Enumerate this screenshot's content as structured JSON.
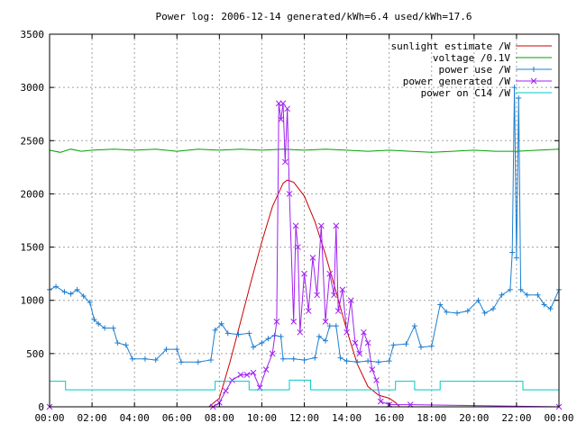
{
  "chart_data": {
    "type": "line",
    "title": "Power log: 2006-12-14 generated/kWh=6.4 used/kWh=17.6",
    "xlabel": "",
    "ylabel": "",
    "xlim": [
      0,
      24
    ],
    "ylim": [
      0,
      3500
    ],
    "grid": true,
    "legend_position": "top-right",
    "x_tick_labels": [
      "00:00",
      "02:00",
      "04:00",
      "06:00",
      "08:00",
      "10:00",
      "12:00",
      "14:00",
      "16:00",
      "18:00",
      "20:00",
      "22:00",
      "00:00"
    ],
    "y_tick_labels": [
      "0",
      "500",
      "1000",
      "1500",
      "2000",
      "2500",
      "3000",
      "3500"
    ],
    "series": [
      {
        "name": "sunlight estimate /W",
        "color": "#cc0000",
        "marker": "none",
        "points": [
          [
            0,
            0
          ],
          [
            7.5,
            0
          ],
          [
            8,
            80
          ],
          [
            8.5,
            420
          ],
          [
            9,
            800
          ],
          [
            9.5,
            1180
          ],
          [
            10,
            1550
          ],
          [
            10.5,
            1880
          ],
          [
            11,
            2100
          ],
          [
            11.2,
            2130
          ],
          [
            11.5,
            2110
          ],
          [
            12,
            1980
          ],
          [
            12.5,
            1740
          ],
          [
            13,
            1430
          ],
          [
            13.5,
            1080
          ],
          [
            14,
            720
          ],
          [
            14.5,
            400
          ],
          [
            15,
            190
          ],
          [
            15.5,
            110
          ],
          [
            16,
            80
          ],
          [
            16.3,
            40
          ],
          [
            16.5,
            0
          ],
          [
            24,
            0
          ]
        ]
      },
      {
        "name": "voltage /0.1V",
        "color": "#00a000",
        "marker": "none",
        "points": [
          [
            0,
            2410
          ],
          [
            0.5,
            2390
          ],
          [
            1,
            2420
          ],
          [
            1.5,
            2400
          ],
          [
            2,
            2410
          ],
          [
            3,
            2420
          ],
          [
            4,
            2410
          ],
          [
            5,
            2420
          ],
          [
            6,
            2400
          ],
          [
            7,
            2420
          ],
          [
            8,
            2410
          ],
          [
            9,
            2420
          ],
          [
            10,
            2410
          ],
          [
            11,
            2420
          ],
          [
            12,
            2410
          ],
          [
            13,
            2420
          ],
          [
            14,
            2410
          ],
          [
            15,
            2400
          ],
          [
            16,
            2410
          ],
          [
            17,
            2400
          ],
          [
            18,
            2390
          ],
          [
            19,
            2400
          ],
          [
            20,
            2410
          ],
          [
            21,
            2400
          ],
          [
            22,
            2400
          ],
          [
            23,
            2410
          ],
          [
            24,
            2420
          ]
        ]
      },
      {
        "name": "power use /W",
        "color": "#1e7fd0",
        "marker": "plus",
        "points": [
          [
            0,
            1100
          ],
          [
            0.3,
            1130
          ],
          [
            0.7,
            1080
          ],
          [
            1,
            1060
          ],
          [
            1.3,
            1100
          ],
          [
            1.6,
            1040
          ],
          [
            1.9,
            980
          ],
          [
            2.1,
            820
          ],
          [
            2.3,
            780
          ],
          [
            2.6,
            740
          ],
          [
            3,
            740
          ],
          [
            3.2,
            600
          ],
          [
            3.6,
            580
          ],
          [
            3.9,
            450
          ],
          [
            4.5,
            450
          ],
          [
            5,
            440
          ],
          [
            5.5,
            540
          ],
          [
            6,
            540
          ],
          [
            6.2,
            420
          ],
          [
            7,
            420
          ],
          [
            7.6,
            440
          ],
          [
            7.8,
            720
          ],
          [
            8.1,
            780
          ],
          [
            8.4,
            690
          ],
          [
            8.9,
            680
          ],
          [
            9.4,
            690
          ],
          [
            9.6,
            560
          ],
          [
            10,
            600
          ],
          [
            10.3,
            640
          ],
          [
            10.6,
            670
          ],
          [
            10.9,
            660
          ],
          [
            11,
            450
          ],
          [
            11.5,
            450
          ],
          [
            12,
            440
          ],
          [
            12.5,
            460
          ],
          [
            12.7,
            660
          ],
          [
            13,
            620
          ],
          [
            13.2,
            760
          ],
          [
            13.5,
            760
          ],
          [
            13.7,
            460
          ],
          [
            14,
            430
          ],
          [
            14.5,
            420
          ],
          [
            15,
            430
          ],
          [
            15.5,
            420
          ],
          [
            16,
            430
          ],
          [
            16.2,
            580
          ],
          [
            16.8,
            590
          ],
          [
            17.2,
            760
          ],
          [
            17.5,
            560
          ],
          [
            18,
            570
          ],
          [
            18.4,
            960
          ],
          [
            18.7,
            890
          ],
          [
            19.2,
            880
          ],
          [
            19.7,
            900
          ],
          [
            20.2,
            1000
          ],
          [
            20.5,
            880
          ],
          [
            20.9,
            920
          ],
          [
            21.3,
            1050
          ],
          [
            21.7,
            1100
          ],
          [
            21.8,
            1450
          ],
          [
            21.9,
            3000
          ],
          [
            22,
            1400
          ],
          [
            22.1,
            2900
          ],
          [
            22.2,
            1100
          ],
          [
            22.5,
            1050
          ],
          [
            23,
            1050
          ],
          [
            23.3,
            960
          ],
          [
            23.6,
            920
          ],
          [
            24,
            1100
          ]
        ]
      },
      {
        "name": "power generated /W",
        "color": "#a020f0",
        "marker": "x",
        "points": [
          [
            0,
            0
          ],
          [
            7.7,
            0
          ],
          [
            8,
            40
          ],
          [
            8.3,
            150
          ],
          [
            8.6,
            250
          ],
          [
            9,
            300
          ],
          [
            9.3,
            300
          ],
          [
            9.6,
            320
          ],
          [
            9.9,
            180
          ],
          [
            10.2,
            350
          ],
          [
            10.5,
            500
          ],
          [
            10.7,
            800
          ],
          [
            10.8,
            2850
          ],
          [
            10.9,
            2700
          ],
          [
            11,
            2850
          ],
          [
            11.1,
            2300
          ],
          [
            11.2,
            2800
          ],
          [
            11.3,
            2000
          ],
          [
            11.5,
            800
          ],
          [
            11.6,
            1700
          ],
          [
            11.7,
            1500
          ],
          [
            11.8,
            700
          ],
          [
            12,
            1250
          ],
          [
            12.2,
            900
          ],
          [
            12.4,
            1400
          ],
          [
            12.6,
            1050
          ],
          [
            12.8,
            1700
          ],
          [
            13,
            800
          ],
          [
            13.2,
            1250
          ],
          [
            13.4,
            1050
          ],
          [
            13.5,
            1700
          ],
          [
            13.6,
            900
          ],
          [
            13.8,
            1100
          ],
          [
            14,
            700
          ],
          [
            14.2,
            1000
          ],
          [
            14.4,
            600
          ],
          [
            14.6,
            500
          ],
          [
            14.8,
            700
          ],
          [
            15,
            600
          ],
          [
            15.2,
            350
          ],
          [
            15.4,
            250
          ],
          [
            15.6,
            50
          ],
          [
            16,
            20
          ],
          [
            17,
            20
          ],
          [
            24,
            0
          ]
        ]
      },
      {
        "name": "power on C14 /W",
        "color": "#00c8c8",
        "marker": "none",
        "points": [
          [
            0,
            240
          ],
          [
            0.75,
            240
          ],
          [
            0.75,
            160
          ],
          [
            7.8,
            160
          ],
          [
            7.8,
            240
          ],
          [
            9.4,
            240
          ],
          [
            9.4,
            160
          ],
          [
            11.3,
            160
          ],
          [
            11.3,
            250
          ],
          [
            12.3,
            250
          ],
          [
            12.3,
            160
          ],
          [
            16.3,
            160
          ],
          [
            16.3,
            240
          ],
          [
            17.2,
            240
          ],
          [
            17.2,
            160
          ],
          [
            18.4,
            160
          ],
          [
            18.4,
            240
          ],
          [
            22.3,
            240
          ],
          [
            22.3,
            160
          ],
          [
            24,
            160
          ]
        ]
      }
    ]
  }
}
